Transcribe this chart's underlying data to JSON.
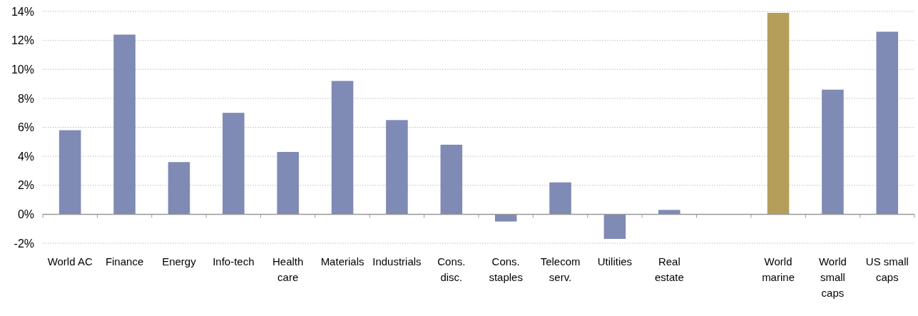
{
  "chart_data": {
    "type": "bar",
    "categories": [
      "World AC",
      "Finance",
      "Energy",
      "Info-tech",
      "Health care",
      "Materials",
      "Industrials",
      "Cons. disc.",
      "Cons. staples",
      "Telecom serv.",
      "Utilities",
      "Real estate",
      null,
      "World marine",
      "World small caps",
      "US small caps"
    ],
    "values": [
      5.8,
      12.4,
      3.6,
      7.0,
      4.3,
      9.2,
      6.5,
      4.8,
      -0.5,
      2.2,
      -1.7,
      0.3,
      null,
      13.9,
      8.6,
      12.6
    ],
    "colors": [
      "#7f8ab5",
      "#7f8ab5",
      "#7f8ab5",
      "#7f8ab5",
      "#7f8ab5",
      "#7f8ab5",
      "#7f8ab5",
      "#7f8ab5",
      "#7f8ab5",
      "#7f8ab5",
      "#7f8ab5",
      "#7f8ab5",
      null,
      "#b59e5a",
      "#7f8ab5",
      "#7f8ab5"
    ],
    "ylim": [
      -2,
      14
    ],
    "yticks": [
      {
        "value": -2,
        "label": "-2%"
      },
      {
        "value": 0,
        "label": "0%"
      },
      {
        "value": 2,
        "label": "2%"
      },
      {
        "value": 4,
        "label": "4%"
      },
      {
        "value": 6,
        "label": "6%"
      },
      {
        "value": 8,
        "label": "8%"
      },
      {
        "value": 10,
        "label": "10%"
      },
      {
        "value": 12,
        "label": "12%"
      },
      {
        "value": 14,
        "label": "14%"
      }
    ],
    "grid": "y"
  }
}
